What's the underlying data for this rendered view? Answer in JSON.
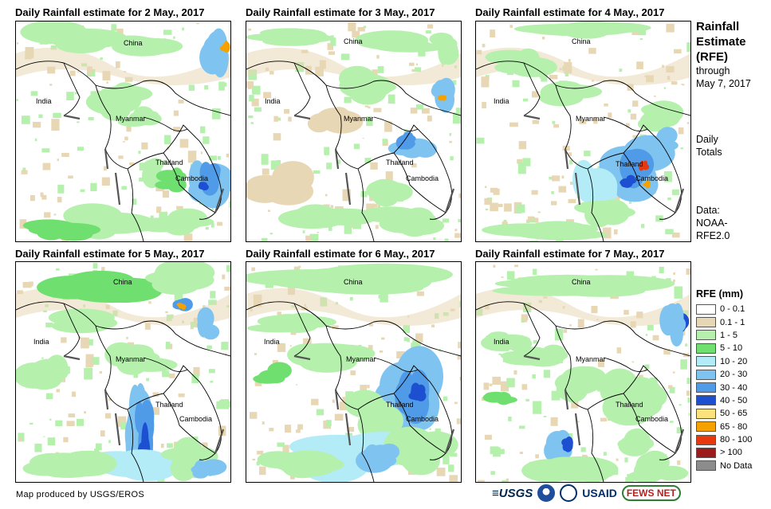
{
  "panels": [
    {
      "title": "Daily Rainfall estimate for 2 May., 2017"
    },
    {
      "title": "Daily Rainfall estimate for 3 May., 2017"
    },
    {
      "title": "Daily Rainfall estimate for 4 May., 2017"
    },
    {
      "title": "Daily Rainfall estimate for 5 May., 2017"
    },
    {
      "title": "Daily Rainfall estimate for 6 May., 2017"
    },
    {
      "title": "Daily Rainfall estimate for 7 May., 2017"
    }
  ],
  "countries": {
    "china": "China",
    "india": "India",
    "myanmar": "Myanmar",
    "thailand": "Thailand",
    "cambodia": "Cambodia"
  },
  "side": {
    "title_line1": "Rainfall",
    "title_line2": "Estimate",
    "title_line3": "(RFE)",
    "through": "through",
    "through_date": "May 7, 2017",
    "totals_line1": "Daily",
    "totals_line2": "Totals",
    "data_line1": "Data:",
    "data_line2": "NOAA-",
    "data_line3": "RFE2.0"
  },
  "legend": {
    "title": "RFE (mm)",
    "items": [
      {
        "label": "0 - 0.1",
        "color": "#ffffff"
      },
      {
        "label": "0.1 - 1",
        "color": "#e8d7b4"
      },
      {
        "label": "1 - 5",
        "color": "#b5f0ad"
      },
      {
        "label": "5 - 10",
        "color": "#6fe06f"
      },
      {
        "label": "10 - 20",
        "color": "#b3ecf7"
      },
      {
        "label": "20 - 30",
        "color": "#7fc4f0"
      },
      {
        "label": "30 - 40",
        "color": "#4f9be8"
      },
      {
        "label": "40 - 50",
        "color": "#1d4fd1"
      },
      {
        "label": "50 - 65",
        "color": "#fbe27c"
      },
      {
        "label": "65 - 80",
        "color": "#f5a100"
      },
      {
        "label": "80 - 100",
        "color": "#e8390e"
      },
      {
        "label": "> 100",
        "color": "#9e1b1b"
      },
      {
        "label": "No Data",
        "color": "#8c8c8c"
      }
    ]
  },
  "credit": "Map produced by USGS/EROS",
  "logos": {
    "usgs": "≡USGS",
    "usaid": "USAID",
    "fews": "FEWS NET"
  }
}
